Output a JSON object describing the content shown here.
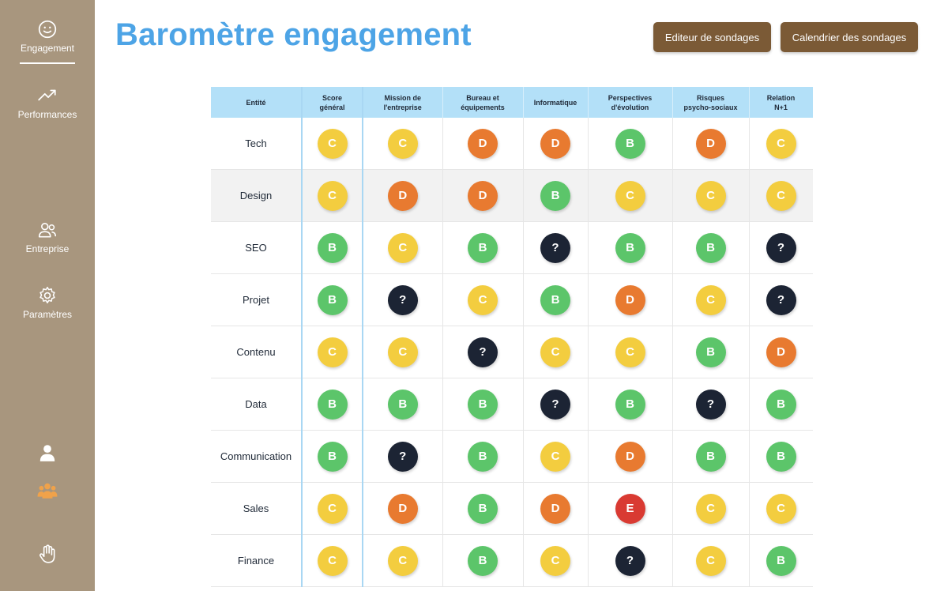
{
  "sidebar": {
    "items": [
      {
        "label": "Engagement",
        "icon": "smiley-icon"
      },
      {
        "label": "Performances",
        "icon": "trending-up-icon"
      },
      {
        "label": "Entreprise",
        "icon": "users-icon"
      },
      {
        "label": "Paramètres",
        "icon": "gear-icon"
      }
    ],
    "utility_icons": [
      "user-icon",
      "group-icon",
      "hand-icon"
    ]
  },
  "header": {
    "title": "Baromètre engagement",
    "editor_button": "Editeur de sondages",
    "calendar_button": "Calendrier des sondages"
  },
  "colors": {
    "B": "#5cc56a",
    "C": "#f3cd3f",
    "D": "#e87a30",
    "E": "#d93a32",
    "?": "#1c2434",
    "sidebar": "#a8967e",
    "title": "#4da4e6",
    "button": "#7b5a36",
    "table_header": "#b3e0f8"
  },
  "table": {
    "headers": [
      [
        "Entité"
      ],
      [
        "Score",
        "général"
      ],
      [
        "Mission de",
        "l'entreprise"
      ],
      [
        "Bureau et",
        "équipements"
      ],
      [
        "Informatique"
      ],
      [
        "Perspectives",
        "d'évolution"
      ],
      [
        "Risques",
        "psycho-sociaux"
      ],
      [
        "Relation",
        "N+1"
      ]
    ],
    "rows": [
      {
        "entity": "Tech",
        "scores": [
          "C",
          "C",
          "D",
          "D",
          "B",
          "D",
          "C"
        ]
      },
      {
        "entity": "Design",
        "scores": [
          "C",
          "D",
          "D",
          "B",
          "C",
          "C",
          "C"
        ]
      },
      {
        "entity": "SEO",
        "scores": [
          "B",
          "C",
          "B",
          "?",
          "B",
          "B",
          "?"
        ]
      },
      {
        "entity": "Projet",
        "scores": [
          "B",
          "?",
          "C",
          "B",
          "D",
          "C",
          "?"
        ]
      },
      {
        "entity": "Contenu",
        "scores": [
          "C",
          "C",
          "?",
          "C",
          "C",
          "B",
          "D"
        ]
      },
      {
        "entity": "Data",
        "scores": [
          "B",
          "B",
          "B",
          "?",
          "B",
          "?",
          "B"
        ]
      },
      {
        "entity": "Communication",
        "scores": [
          "B",
          "?",
          "B",
          "C",
          "D",
          "B",
          "B"
        ]
      },
      {
        "entity": "Sales",
        "scores": [
          "C",
          "D",
          "B",
          "D",
          "E",
          "C",
          "C"
        ]
      },
      {
        "entity": "Finance",
        "scores": [
          "C",
          "C",
          "B",
          "C",
          "?",
          "C",
          "B"
        ]
      }
    ]
  }
}
